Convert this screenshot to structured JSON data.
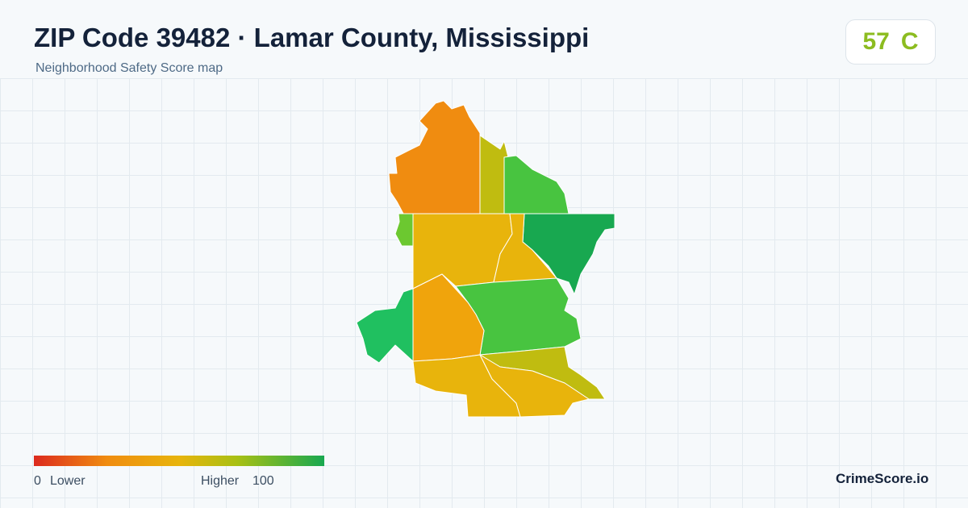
{
  "header": {
    "title": "ZIP Code 39482 · Lamar County, Mississippi",
    "subtitle": "Neighborhood Safety Score map"
  },
  "score": {
    "value": "57",
    "grade": "C"
  },
  "legend": {
    "min": "0",
    "min_label": "Lower",
    "max_label": "Higher",
    "max": "100"
  },
  "brand": "CrimeScore.io"
}
